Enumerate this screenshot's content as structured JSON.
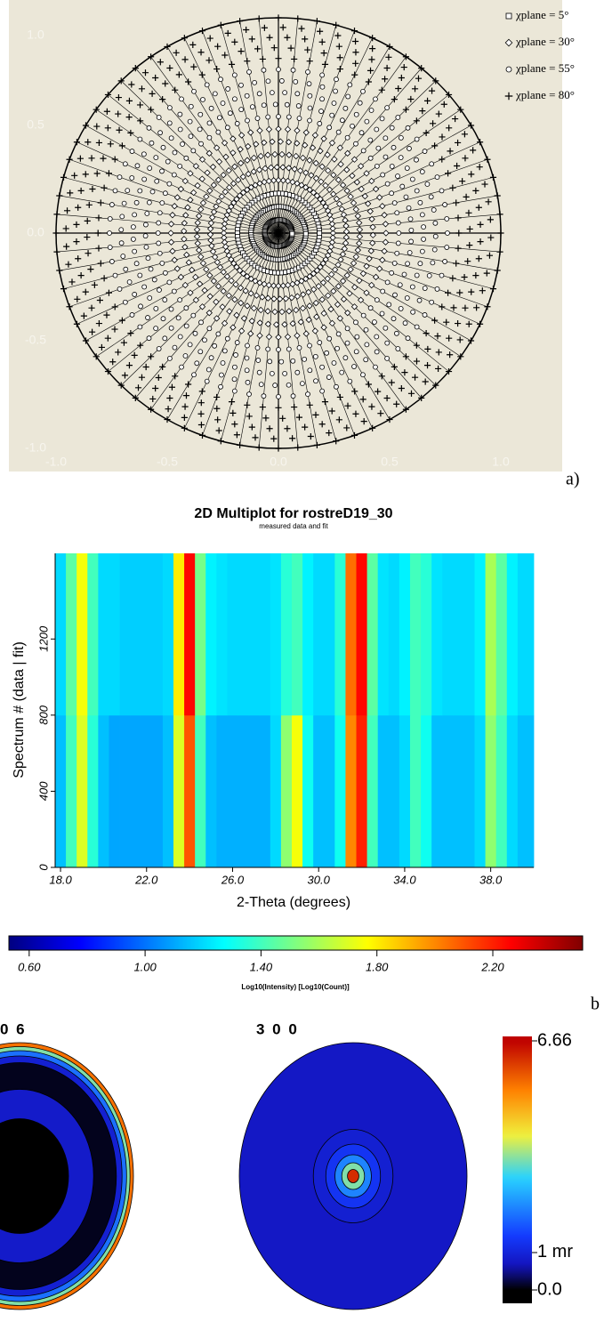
{
  "chart_data": [
    {
      "type": "stereonet",
      "panel_label": "a)",
      "xlim": [
        -1,
        1
      ],
      "ylim": [
        -1,
        1
      ],
      "xticks": [
        {
          "value": -1,
          "label": "-1.0"
        },
        {
          "value": -0.5,
          "label": "-0.5"
        },
        {
          "value": 0,
          "label": "0.0"
        },
        {
          "value": 0.5,
          "label": "0.5"
        },
        {
          "value": 1,
          "label": "1.0"
        }
      ],
      "yticks": [
        {
          "value": -1,
          "label": "-1.0"
        },
        {
          "value": -0.5,
          "label": "-0.5"
        },
        {
          "value": 0,
          "label": "0.0"
        },
        {
          "value": 0.5,
          "label": "0.5"
        },
        {
          "value": 1,
          "label": "1.0"
        }
      ],
      "series": [
        {
          "name": "χplane =  5°",
          "marker": "square",
          "chi": 5
        },
        {
          "name": "χplane = 30°",
          "marker": "diamond",
          "chi": 30
        },
        {
          "name": "χplane = 55°",
          "marker": "circle",
          "chi": 55
        },
        {
          "name": "χplane = 80°",
          "marker": "plus",
          "chi": 80
        }
      ]
    },
    {
      "type": "heatmap",
      "panel_label": "b",
      "title": "2D Multiplot for rostreD19_30",
      "subtitle": "measured data and fit",
      "xlabel": "2-Theta (degrees)",
      "ylabel": "Spectrum # (data | fit)",
      "xlim": [
        17.75,
        40
      ],
      "ylim": [
        0,
        1650
      ],
      "xticks": [
        {
          "value": 18,
          "label": "18.0"
        },
        {
          "value": 22,
          "label": "22.0"
        },
        {
          "value": 26,
          "label": "26.0"
        },
        {
          "value": 30,
          "label": "30.0"
        },
        {
          "value": 34,
          "label": "34.0"
        },
        {
          "value": 38,
          "label": "38.0"
        }
      ],
      "yticks": [
        0,
        400,
        800,
        1200
      ],
      "x": [
        18.0,
        18.5,
        19.0,
        19.5,
        20.0,
        20.5,
        21.0,
        21.5,
        22.0,
        22.5,
        23.0,
        23.5,
        24.0,
        24.5,
        25.0,
        25.5,
        26.0,
        26.5,
        27.0,
        27.5,
        28.0,
        28.5,
        29.0,
        29.5,
        30.0,
        30.5,
        31.0,
        31.5,
        32.0,
        32.5,
        33.0,
        33.5,
        34.0,
        34.5,
        35.0,
        35.5,
        36.0,
        36.5,
        37.0,
        37.5,
        38.0,
        38.5,
        39.0,
        39.5
      ],
      "y": [
        0,
        800
      ],
      "z": [
        [
          1.15,
          1.4,
          1.7,
          1.35,
          1.15,
          1.1,
          1.1,
          1.1,
          1.1,
          1.1,
          1.15,
          1.7,
          2.1,
          1.4,
          1.15,
          1.12,
          1.12,
          1.12,
          1.12,
          1.12,
          1.2,
          1.55,
          1.75,
          1.3,
          1.15,
          1.15,
          1.3,
          2.0,
          2.2,
          1.4,
          1.15,
          1.15,
          1.2,
          1.4,
          1.3,
          1.15,
          1.15,
          1.15,
          1.15,
          1.2,
          1.55,
          1.4,
          1.2,
          1.15
        ],
        [
          1.2,
          1.45,
          1.75,
          1.4,
          1.2,
          1.2,
          1.18,
          1.18,
          1.18,
          1.18,
          1.2,
          1.8,
          2.25,
          1.5,
          1.25,
          1.22,
          1.2,
          1.2,
          1.2,
          1.2,
          1.22,
          1.35,
          1.4,
          1.25,
          1.2,
          1.2,
          1.35,
          2.05,
          2.25,
          1.45,
          1.22,
          1.2,
          1.25,
          1.4,
          1.35,
          1.22,
          1.2,
          1.2,
          1.2,
          1.25,
          1.6,
          1.45,
          1.25,
          1.2
        ]
      ],
      "colormap": "jet",
      "colorbar": {
        "label": "Log10(Intensity) [Log10(Count)]",
        "clim": [
          0.53,
          2.51
        ],
        "ticks": [
          {
            "value": 0.6,
            "label": "0.60"
          },
          {
            "value": 1.0,
            "label": "1.00"
          },
          {
            "value": 1.4,
            "label": "1.40"
          },
          {
            "value": 1.8,
            "label": "1.80"
          },
          {
            "value": 2.2,
            "label": "2.20"
          }
        ]
      }
    },
    {
      "type": "pole-figure",
      "panels": [
        {
          "title": "0 6",
          "r": [
            0.43,
            0.65,
            0.85,
            0.9,
            0.94,
            0.97,
            1.0
          ],
          "values": [
            0,
            0.8,
            0.1,
            0.9,
            2,
            3.5,
            5.5
          ]
        },
        {
          "title": "3 0 0",
          "r": [
            0.05,
            0.1,
            0.16,
            0.24,
            0.35,
            1.0
          ],
          "values": [
            6.2,
            3.5,
            2.2,
            1.3,
            0.9,
            0.75
          ]
        }
      ],
      "colorbar": {
        "clim": [
          0,
          6.66
        ],
        "ticks": [
          6.66,
          {
            "value": 1,
            "label": "1 mr"
          },
          {
            "value": 0,
            "label": "0.0"
          }
        ]
      }
    }
  ]
}
